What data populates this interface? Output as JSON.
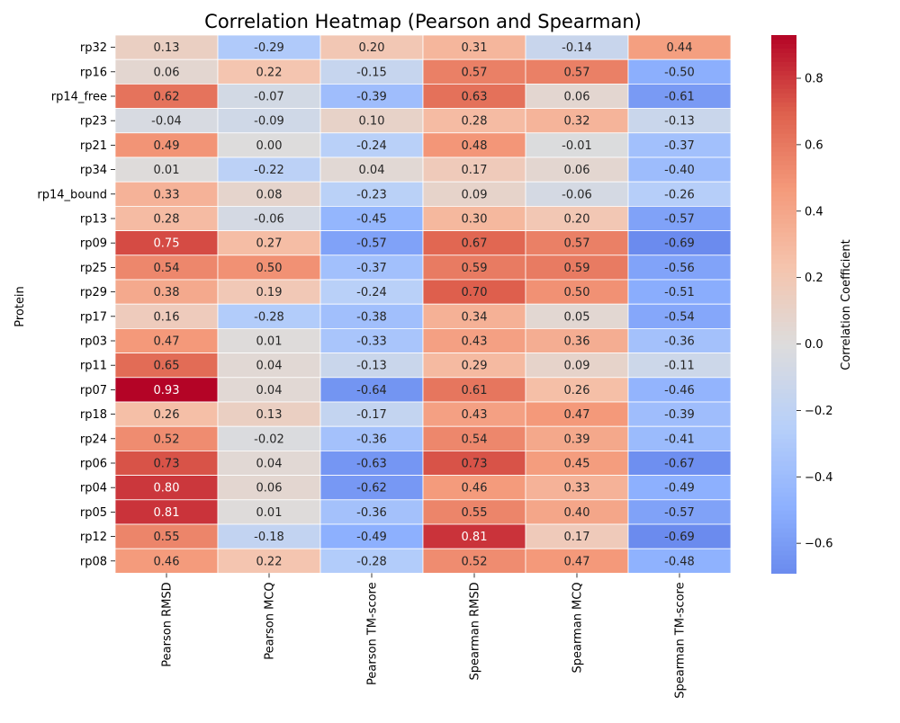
{
  "chart_data": {
    "type": "heatmap",
    "title": "Correlation Heatmap (Pearson and Spearman)",
    "ylabel": "Protein",
    "xlabel": "",
    "columns": [
      "Pearson RMSD",
      "Pearson MCQ",
      "Pearson TM-score",
      "Spearman RMSD",
      "Spearman MCQ",
      "Spearman TM-score"
    ],
    "rows": [
      "rp32",
      "rp16",
      "rp14_free",
      "rp23",
      "rp21",
      "rp34",
      "rp14_bound",
      "rp13",
      "rp09",
      "rp25",
      "rp29",
      "rp17",
      "rp03",
      "rp11",
      "rp07",
      "rp18",
      "rp24",
      "rp06",
      "rp04",
      "rp05",
      "rp12",
      "rp08"
    ],
    "values": [
      [
        0.13,
        -0.29,
        0.2,
        0.31,
        -0.14,
        0.44
      ],
      [
        0.06,
        0.22,
        -0.15,
        0.57,
        0.57,
        -0.5
      ],
      [
        0.62,
        -0.07,
        -0.39,
        0.63,
        0.06,
        -0.61
      ],
      [
        -0.04,
        -0.09,
        0.1,
        0.28,
        0.32,
        -0.13
      ],
      [
        0.49,
        0.0,
        -0.24,
        0.48,
        -0.01,
        -0.37
      ],
      [
        0.01,
        -0.22,
        0.04,
        0.17,
        0.06,
        -0.4
      ],
      [
        0.33,
        0.08,
        -0.23,
        0.09,
        -0.06,
        -0.26
      ],
      [
        0.28,
        -0.06,
        -0.45,
        0.3,
        0.2,
        -0.57
      ],
      [
        0.75,
        0.27,
        -0.57,
        0.67,
        0.57,
        -0.69
      ],
      [
        0.54,
        0.5,
        -0.37,
        0.59,
        0.59,
        -0.56
      ],
      [
        0.38,
        0.19,
        -0.24,
        0.7,
        0.5,
        -0.51
      ],
      [
        0.16,
        -0.28,
        -0.38,
        0.34,
        0.05,
        -0.54
      ],
      [
        0.47,
        0.01,
        -0.33,
        0.43,
        0.36,
        -0.36
      ],
      [
        0.65,
        0.04,
        -0.13,
        0.29,
        0.09,
        -0.11
      ],
      [
        0.93,
        0.04,
        -0.64,
        0.61,
        0.26,
        -0.46
      ],
      [
        0.26,
        0.13,
        -0.17,
        0.43,
        0.47,
        -0.39
      ],
      [
        0.52,
        -0.02,
        -0.36,
        0.54,
        0.39,
        -0.41
      ],
      [
        0.73,
        0.04,
        -0.63,
        0.73,
        0.45,
        -0.67
      ],
      [
        0.8,
        0.06,
        -0.62,
        0.46,
        0.33,
        -0.49
      ],
      [
        0.81,
        0.01,
        -0.36,
        0.55,
        0.4,
        -0.57
      ],
      [
        0.55,
        -0.18,
        -0.49,
        0.81,
        0.17,
        -0.69
      ],
      [
        0.46,
        0.22,
        -0.28,
        0.52,
        0.47,
        -0.48
      ]
    ],
    "colorbar": {
      "label": "Correlation Coefficient",
      "vmin": -0.69,
      "vmax": 0.93,
      "ticks": [
        -0.6,
        -0.4,
        -0.2,
        0.0,
        0.2,
        0.4,
        0.6,
        0.8
      ],
      "tick_labels": [
        "−0.6",
        "−0.4",
        "−0.2",
        "0.0",
        "0.2",
        "0.4",
        "0.6",
        "0.8"
      ],
      "colormap": "coolwarm",
      "color_low": "#6788ee",
      "color_mid": "#dddcdc",
      "color_high": "#b40426"
    },
    "annotation_format": "2 decimals",
    "legend": "colorbar-right"
  }
}
